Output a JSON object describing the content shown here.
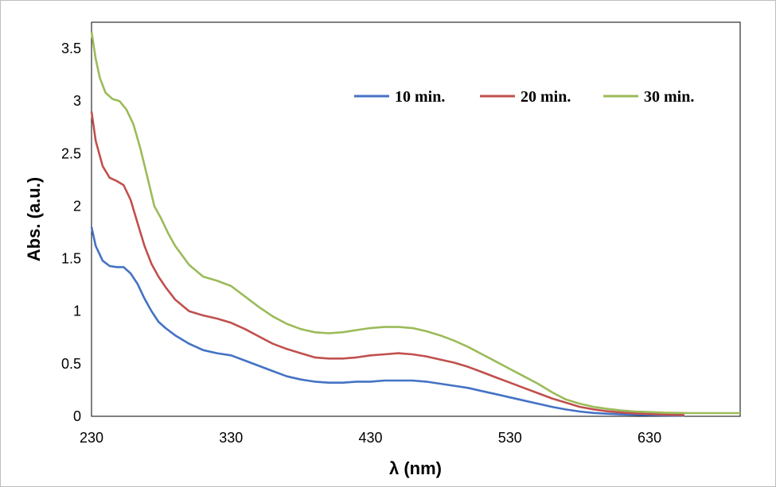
{
  "chart_data": {
    "type": "line",
    "xlabel": "λ (nm)",
    "ylabel": "Abs. (a.u.)",
    "xlim": [
      230,
      695
    ],
    "ylim": [
      0,
      3.75
    ],
    "x_ticks": [
      "230",
      "330",
      "430",
      "530",
      "630"
    ],
    "y_ticks": [
      "0",
      "0.5",
      "1",
      "1.5",
      "2",
      "2.5",
      "3",
      "3.5"
    ],
    "grid": false,
    "legend": "top-right",
    "series": [
      {
        "name": "10 min.",
        "color": "#4472c4",
        "x": [
          230,
          233,
          238,
          243,
          248,
          253,
          258,
          263,
          268,
          273,
          278,
          283,
          290,
          300,
          310,
          320,
          330,
          340,
          350,
          360,
          370,
          380,
          390,
          400,
          410,
          420,
          430,
          440,
          450,
          460,
          470,
          480,
          490,
          500,
          510,
          520,
          530,
          540,
          550,
          560,
          570,
          580,
          590,
          600,
          610,
          620,
          630,
          640,
          655
        ],
        "y": [
          1.8,
          1.62,
          1.48,
          1.43,
          1.42,
          1.42,
          1.36,
          1.26,
          1.12,
          1.0,
          0.9,
          0.84,
          0.77,
          0.69,
          0.63,
          0.6,
          0.58,
          0.53,
          0.48,
          0.43,
          0.38,
          0.35,
          0.33,
          0.32,
          0.32,
          0.33,
          0.33,
          0.34,
          0.34,
          0.34,
          0.33,
          0.31,
          0.29,
          0.27,
          0.24,
          0.21,
          0.18,
          0.15,
          0.12,
          0.09,
          0.065,
          0.045,
          0.032,
          0.024,
          0.018,
          0.014,
          0.011,
          0.009,
          0.007
        ]
      },
      {
        "name": "20 min.",
        "color": "#c0504d",
        "x": [
          230,
          233,
          238,
          243,
          248,
          253,
          258,
          263,
          268,
          273,
          278,
          283,
          290,
          300,
          310,
          320,
          330,
          340,
          350,
          360,
          370,
          380,
          390,
          400,
          410,
          420,
          430,
          440,
          450,
          460,
          470,
          480,
          490,
          500,
          510,
          520,
          530,
          540,
          550,
          560,
          570,
          580,
          590,
          600,
          610,
          620,
          630,
          640,
          655
        ],
        "y": [
          2.9,
          2.62,
          2.38,
          2.27,
          2.24,
          2.2,
          2.06,
          1.84,
          1.62,
          1.45,
          1.33,
          1.23,
          1.11,
          1.0,
          0.96,
          0.93,
          0.89,
          0.83,
          0.76,
          0.69,
          0.64,
          0.6,
          0.56,
          0.55,
          0.55,
          0.56,
          0.58,
          0.59,
          0.6,
          0.59,
          0.57,
          0.54,
          0.51,
          0.47,
          0.42,
          0.37,
          0.32,
          0.27,
          0.22,
          0.17,
          0.13,
          0.09,
          0.066,
          0.048,
          0.036,
          0.028,
          0.022,
          0.017,
          0.012
        ]
      },
      {
        "name": "30 min.",
        "color": "#9bbb59",
        "x": [
          230,
          233,
          236,
          240,
          245,
          250,
          255,
          260,
          265,
          270,
          275,
          280,
          285,
          290,
          300,
          310,
          320,
          330,
          340,
          350,
          360,
          370,
          380,
          390,
          400,
          410,
          420,
          430,
          440,
          450,
          460,
          470,
          480,
          490,
          500,
          510,
          520,
          530,
          540,
          550,
          560,
          570,
          580,
          590,
          600,
          610,
          620,
          630,
          640,
          660,
          695
        ],
        "y": [
          3.66,
          3.4,
          3.22,
          3.08,
          3.02,
          3.0,
          2.92,
          2.78,
          2.55,
          2.28,
          2.0,
          1.88,
          1.74,
          1.62,
          1.44,
          1.33,
          1.29,
          1.24,
          1.14,
          1.04,
          0.95,
          0.88,
          0.83,
          0.8,
          0.79,
          0.8,
          0.82,
          0.84,
          0.85,
          0.85,
          0.84,
          0.81,
          0.77,
          0.72,
          0.66,
          0.59,
          0.52,
          0.45,
          0.38,
          0.31,
          0.23,
          0.16,
          0.12,
          0.09,
          0.07,
          0.055,
          0.045,
          0.04,
          0.035,
          0.03,
          0.03
        ]
      }
    ]
  }
}
